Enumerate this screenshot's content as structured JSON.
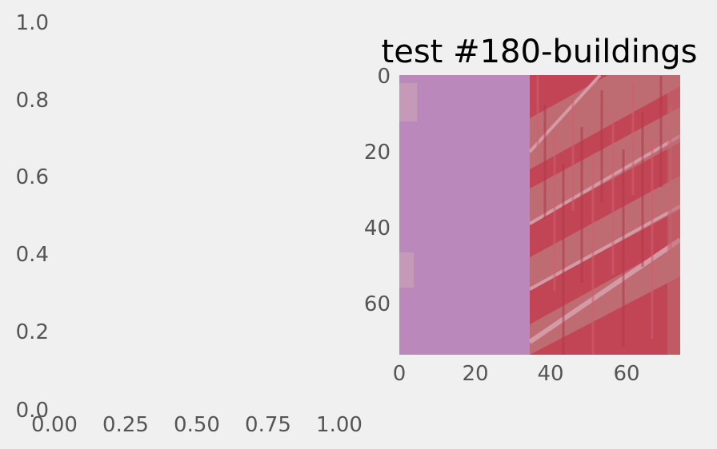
{
  "figure": {
    "background": "#f0f0f0",
    "tick_color": "#555555",
    "title_color": "#000000"
  },
  "chart_data": [
    {
      "type": "scatter",
      "title": "",
      "xlabel": "",
      "ylabel": "",
      "xlim": [
        0,
        1
      ],
      "ylim": [
        0,
        1
      ],
      "xticks": [
        "0.00",
        "0.25",
        "0.50",
        "0.75",
        "1.00"
      ],
      "yticks": [
        "0.0",
        "0.2",
        "0.4",
        "0.6",
        "0.8",
        "1.0"
      ],
      "series": [],
      "grid": false
    },
    {
      "type": "heatmap",
      "title": "test #180-buildings",
      "xlabel": "",
      "ylabel": "",
      "xlim": [
        0,
        74
      ],
      "ylim": [
        74,
        0
      ],
      "xticks": [
        "0",
        "20",
        "40",
        "60"
      ],
      "yticks": [
        "0",
        "20",
        "40",
        "60"
      ],
      "image_size": [
        74,
        74
      ],
      "colors": {
        "left_region": "#bb88bb",
        "right_region_dark": "#c24555",
        "right_region_light": "#bf6b72",
        "stripe_highlight": "#d49aa6",
        "patch_light": "#c8a3b6"
      },
      "grid": false
    }
  ]
}
